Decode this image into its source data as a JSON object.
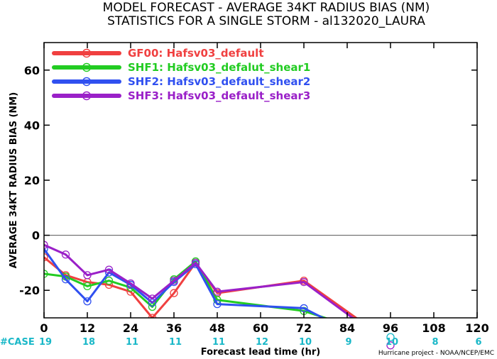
{
  "chart_data": {
    "type": "line",
    "title": "MODEL FORECAST - AVERAGE 34KT RADIUS BIAS (NM)",
    "subtitle": "STATISTICS FOR A SINGLE STORM - al132020_LAURA",
    "xlabel": "Forecast lead time (hr)",
    "ylabel": "AVERAGE 34KT RADIUS BIAS (NM)",
    "xlim": [
      0,
      120
    ],
    "ylim": [
      -30,
      70
    ],
    "xticks": [
      0,
      12,
      24,
      36,
      48,
      60,
      72,
      84,
      96,
      108,
      120
    ],
    "yticks": [
      -20,
      0,
      20,
      40,
      60
    ],
    "reference_line": 0,
    "legend_position": "top-left",
    "cases_label": "#CASE",
    "cases": [
      {
        "x": 0,
        "n": "19"
      },
      {
        "x": 12,
        "n": "18"
      },
      {
        "x": 24,
        "n": "11"
      },
      {
        "x": 36,
        "n": "11"
      },
      {
        "x": 48,
        "n": "11"
      },
      {
        "x": 60,
        "n": "12"
      },
      {
        "x": 72,
        "n": "10"
      },
      {
        "x": 84,
        "n": "9"
      },
      {
        "x": 96,
        "n": "10"
      },
      {
        "x": 108,
        "n": "8"
      },
      {
        "x": 120,
        "n": "6"
      }
    ],
    "credit": "Hurricane project - NOAA/NCEP/EMC",
    "series": [
      {
        "name": "GF00: Hafsv03_default",
        "color": "#f04040",
        "points": [
          [
            0,
            -8
          ],
          [
            6,
            -14.5
          ],
          [
            12,
            -17
          ],
          [
            18,
            -18
          ],
          [
            24,
            -20.5
          ],
          [
            30,
            -30
          ],
          [
            36,
            -21
          ],
          [
            42,
            -10
          ],
          [
            48,
            -21
          ],
          [
            72,
            -16.5
          ],
          [
            87,
            -30.5
          ]
        ]
      },
      {
        "name": "SHF1: Hafsv03_defalut_shear1",
        "color": "#22cc22",
        "points": [
          [
            0,
            -14
          ],
          [
            6,
            -15
          ],
          [
            12,
            -18.5
          ],
          [
            18,
            -16.5
          ],
          [
            24,
            -19
          ],
          [
            30,
            -26
          ],
          [
            36,
            -16
          ],
          [
            42,
            -9.5
          ],
          [
            48,
            -23.5
          ],
          [
            72,
            -27.5
          ],
          [
            79,
            -30.5
          ]
        ]
      },
      {
        "name": "SHF2: Hafsv03_default_shear2",
        "color": "#3050f0",
        "points": [
          [
            0,
            -5
          ],
          [
            6,
            -16
          ],
          [
            12,
            -24
          ],
          [
            18,
            -13.5
          ],
          [
            24,
            -18
          ],
          [
            30,
            -24.5
          ],
          [
            36,
            -17
          ],
          [
            42,
            -10.5
          ],
          [
            48,
            -25
          ],
          [
            72,
            -26.5
          ],
          [
            78,
            -30.5
          ]
        ]
      },
      {
        "name": "SHF3: Hafsv03_default_shear3",
        "color": "#9a20c8",
        "points": [
          [
            0,
            -3.5
          ],
          [
            6,
            -7
          ],
          [
            12,
            -14.5
          ],
          [
            18,
            -12.5
          ],
          [
            24,
            -17.5
          ],
          [
            30,
            -23
          ],
          [
            36,
            -16.5
          ],
          [
            42,
            -10
          ],
          [
            48,
            -20.5
          ],
          [
            72,
            -17
          ],
          [
            86,
            -30.5
          ]
        ]
      }
    ],
    "extra_markers": [
      {
        "x": 96,
        "y": -37,
        "color": "#1ab8c8"
      },
      {
        "x": 96,
        "y": -40,
        "color": "#9a20c8"
      }
    ]
  }
}
